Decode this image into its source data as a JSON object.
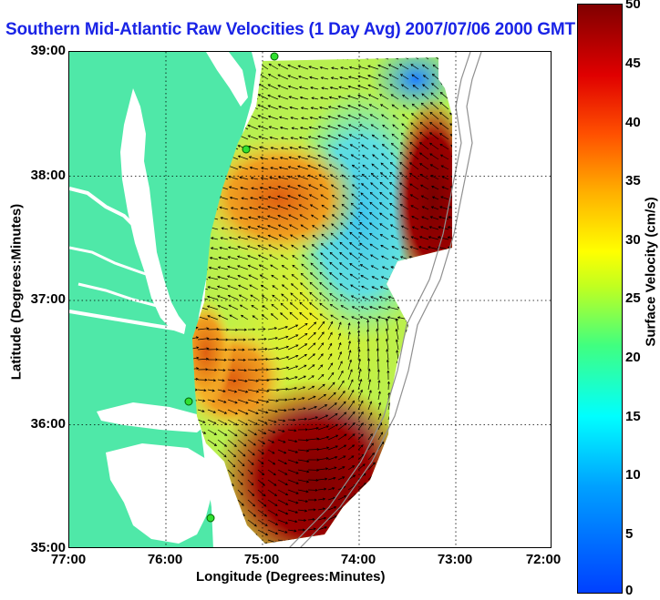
{
  "title": "Southern Mid-Atlantic Raw Velocities (1 Day Avg) 2007/07/06 2000 GMT",
  "map": {
    "xlabel": "Longitude (Degrees:Minutes)",
    "ylabel": "Latitude (Degrees:Minutes)",
    "x_ticks": [
      "77:00",
      "76:00",
      "75:00",
      "74:00",
      "73:00",
      "72:00"
    ],
    "y_ticks": [
      "39:00",
      "38:00",
      "37:00",
      "36:00",
      "35:00"
    ],
    "lon_range": [
      -77,
      -72
    ],
    "lat_range": [
      35,
      39
    ],
    "grid": "dotted",
    "land_color": "#4fe8a8",
    "vector_color": "#000000"
  },
  "colorbar": {
    "label": "Surface Velocity (cm/s)",
    "ticks": [
      "50",
      "45",
      "40",
      "35",
      "30",
      "25",
      "20",
      "15",
      "10",
      "5",
      "0"
    ],
    "range": [
      0,
      50
    ],
    "colormap": "jet"
  }
}
